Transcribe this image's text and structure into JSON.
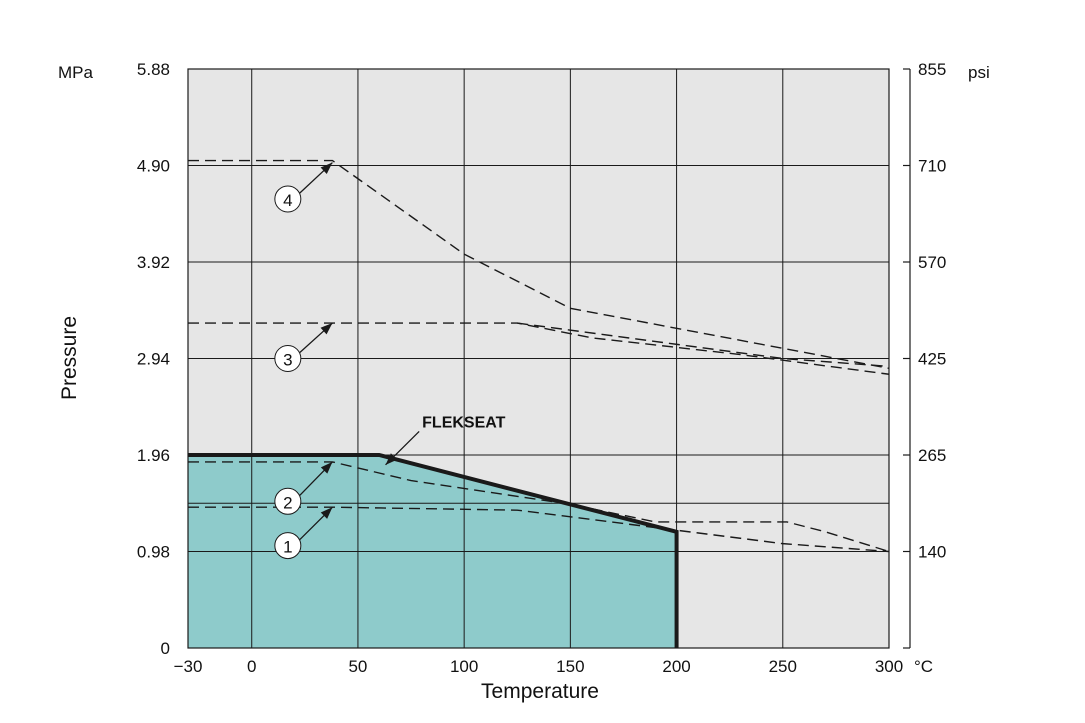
{
  "chart_data": {
    "type": "line",
    "xlabel": "Temperature",
    "ylabel": "Pressure",
    "x_unit": "°C",
    "y_unit_left": "MPa",
    "y_unit_right": "psi",
    "xlim": [
      -30,
      300
    ],
    "ylim": [
      0,
      5.88
    ],
    "x_ticks": [
      {
        "value": -30,
        "label": "−30"
      },
      {
        "value": 0,
        "label": "0"
      },
      {
        "value": 50,
        "label": "50"
      },
      {
        "value": 100,
        "label": "100"
      },
      {
        "value": 150,
        "label": "150"
      },
      {
        "value": 200,
        "label": "200"
      },
      {
        "value": 250,
        "label": "250"
      },
      {
        "value": 300,
        "label": "300"
      }
    ],
    "y_ticks_left": [
      {
        "value": 0,
        "label": "0"
      },
      {
        "value": 0.98,
        "label": "0.98"
      },
      {
        "value": 1.96,
        "label": "1.96"
      },
      {
        "value": 2.94,
        "label": "2.94"
      },
      {
        "value": 3.92,
        "label": "3.92"
      },
      {
        "value": 4.9,
        "label": "4.90"
      },
      {
        "value": 5.88,
        "label": "5.88"
      }
    ],
    "y_ticks_right": [
      {
        "value": 0.98,
        "label": "140"
      },
      {
        "value": 1.96,
        "label": "265"
      },
      {
        "value": 2.94,
        "label": "425"
      },
      {
        "value": 3.92,
        "label": "570"
      },
      {
        "value": 4.9,
        "label": "710"
      },
      {
        "value": 5.88,
        "label": "855"
      }
    ],
    "extra_gridlines_y": [
      1.47
    ],
    "grid": true,
    "series": [
      {
        "name": "FLEKSEAT",
        "style": "solid-thick",
        "filled": true,
        "x": [
          -30,
          60,
          200,
          200
        ],
        "y": [
          1.96,
          1.96,
          1.18,
          0
        ]
      },
      {
        "name": "①",
        "style": "dashed",
        "x": [
          -30,
          38,
          125,
          250,
          300
        ],
        "y": [
          1.43,
          1.43,
          1.4,
          1.06,
          0.98
        ]
      },
      {
        "name": "②",
        "style": "dashed",
        "x": [
          -30,
          38,
          75,
          150,
          190,
          252,
          270,
          300
        ],
        "y": [
          1.89,
          1.89,
          1.7,
          1.46,
          1.28,
          1.28,
          1.18,
          0.98
        ]
      },
      {
        "name": "③",
        "style": "dashed",
        "x": [
          -30,
          38,
          125,
          160,
          230,
          300
        ],
        "y": [
          3.3,
          3.3,
          3.3,
          3.15,
          2.98,
          2.78
        ]
      },
      {
        "name": "③",
        "style": "dashed",
        "x": [
          125,
          250,
          300
        ],
        "y": [
          3.3,
          2.94,
          2.86
        ]
      },
      {
        "name": "④",
        "style": "dashed",
        "x": [
          -30,
          38,
          100,
          150,
          300
        ],
        "y": [
          4.95,
          4.95,
          4.0,
          3.45,
          2.84
        ]
      }
    ],
    "annotations": [
      {
        "label": "④",
        "x": 17,
        "y": 4.56,
        "arrow_to": [
          38,
          4.93
        ]
      },
      {
        "label": "③",
        "x": 17,
        "y": 2.94,
        "arrow_to": [
          38,
          3.3
        ]
      },
      {
        "label": "②",
        "x": 17,
        "y": 1.49,
        "arrow_to": [
          38,
          1.89
        ]
      },
      {
        "label": "①",
        "x": 17,
        "y": 1.04,
        "arrow_to": [
          38,
          1.43
        ]
      },
      {
        "label": "FLEKSEAT",
        "x": 92,
        "y": 2.24,
        "arrow_to": [
          63,
          1.86
        ]
      }
    ],
    "colors": {
      "plot_bg": "#e6e6e6",
      "fill": "#8ecbcb",
      "line": "#1a1a1a",
      "grid": "#1a1a1a"
    }
  }
}
